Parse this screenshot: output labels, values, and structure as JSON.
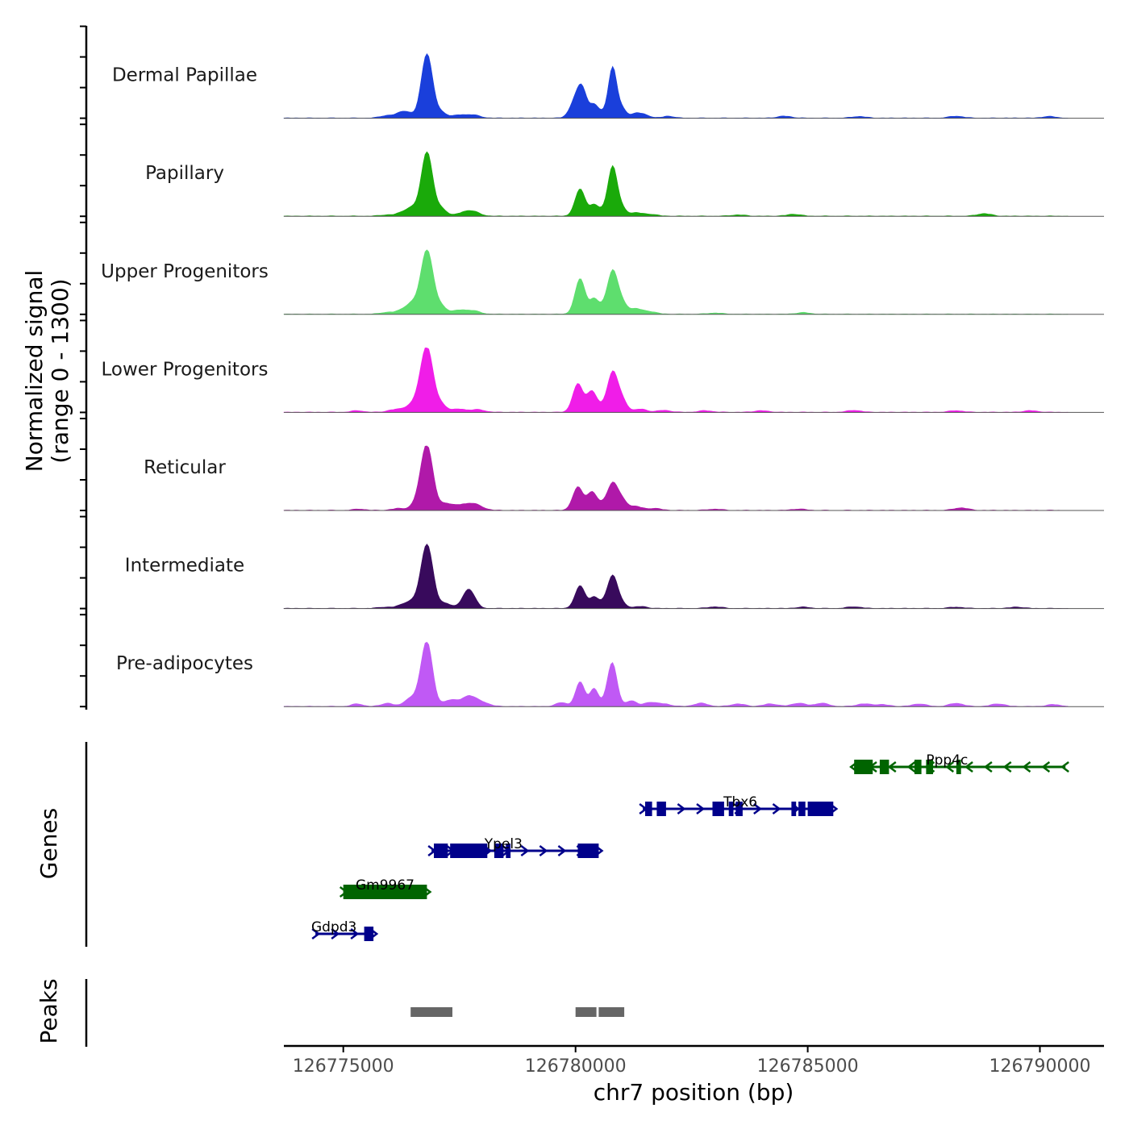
{
  "chart_data": {
    "type": "area",
    "title": "",
    "ylabel_line1": "Normalized signal",
    "ylabel_line2": "(range 0 - 1300)",
    "y_range": [
      0,
      1300
    ],
    "xlabel": "chr7 position (bp)",
    "xlim": [
      126773720,
      126791380
    ],
    "xticks": [
      "126775000",
      "126780000",
      "126785000",
      "126790000"
    ],
    "xtick_values": [
      126775000,
      126780000,
      126785000,
      126790000
    ],
    "tracks": [
      {
        "name": "Dermal Papillae",
        "color": "#1a3fdb",
        "peaks": [
          [
            126775950,
            40,
            150
          ],
          [
            126776250,
            70,
            120
          ],
          [
            126776400,
            60,
            120
          ],
          [
            126776800,
            1000,
            120
          ],
          [
            126777100,
            90,
            120
          ],
          [
            126777500,
            45,
            150
          ],
          [
            126777800,
            45,
            150
          ],
          [
            126780000,
            270,
            120
          ],
          [
            126780150,
            380,
            100
          ],
          [
            126780400,
            200,
            90
          ],
          [
            126780600,
            70,
            100
          ],
          [
            126780800,
            780,
            90
          ],
          [
            126781000,
            140,
            90
          ],
          [
            126781300,
            70,
            120
          ],
          [
            126781500,
            40,
            120
          ],
          [
            126782000,
            30,
            120
          ],
          [
            126784500,
            30,
            150
          ],
          [
            126786100,
            25,
            150
          ],
          [
            126788200,
            30,
            150
          ],
          [
            126790200,
            25,
            150
          ]
        ]
      },
      {
        "name": "Papillary",
        "color": "#1aaa0a",
        "peaks": [
          [
            126775950,
            20,
            150
          ],
          [
            126776300,
            60,
            130
          ],
          [
            126776500,
            110,
            120
          ],
          [
            126776800,
            1000,
            120
          ],
          [
            126777100,
            120,
            120
          ],
          [
            126777600,
            50,
            150
          ],
          [
            126777800,
            60,
            150
          ],
          [
            126780100,
            420,
            110
          ],
          [
            126780400,
            170,
            90
          ],
          [
            126780600,
            70,
            100
          ],
          [
            126780800,
            760,
            100
          ],
          [
            126781000,
            110,
            100
          ],
          [
            126781300,
            50,
            120
          ],
          [
            126781600,
            30,
            150
          ],
          [
            126783500,
            20,
            150
          ],
          [
            126784700,
            30,
            150
          ],
          [
            126788800,
            40,
            150
          ]
        ]
      },
      {
        "name": "Upper Progenitors",
        "color": "#5ede6e",
        "peaks": [
          [
            126775950,
            30,
            150
          ],
          [
            126776300,
            70,
            130
          ],
          [
            126776500,
            140,
            120
          ],
          [
            126776800,
            1000,
            130
          ],
          [
            126777100,
            120,
            120
          ],
          [
            126777500,
            60,
            150
          ],
          [
            126777800,
            50,
            150
          ],
          [
            126780100,
            550,
            110
          ],
          [
            126780400,
            230,
            90
          ],
          [
            126780600,
            90,
            100
          ],
          [
            126780800,
            650,
            110
          ],
          [
            126781000,
            160,
            110
          ],
          [
            126781300,
            80,
            130
          ],
          [
            126781600,
            40,
            150
          ],
          [
            126783000,
            20,
            150
          ],
          [
            126784900,
            25,
            150
          ]
        ]
      },
      {
        "name": "Lower Progenitors",
        "color": "#f01de8",
        "peaks": [
          [
            126775300,
            25,
            130
          ],
          [
            126776100,
            40,
            150
          ],
          [
            126776400,
            70,
            130
          ],
          [
            126776600,
            120,
            120
          ],
          [
            126776800,
            1000,
            130
          ],
          [
            126777100,
            120,
            120
          ],
          [
            126777500,
            50,
            150
          ],
          [
            126777900,
            40,
            150
          ],
          [
            126780050,
            440,
            110
          ],
          [
            126780300,
            180,
            90
          ],
          [
            126780400,
            200,
            90
          ],
          [
            126780600,
            70,
            100
          ],
          [
            126780800,
            600,
            110
          ],
          [
            126781000,
            180,
            110
          ],
          [
            126781400,
            50,
            130
          ],
          [
            126781900,
            30,
            150
          ],
          [
            126782800,
            25,
            150
          ],
          [
            126784000,
            25,
            150
          ],
          [
            126786000,
            30,
            150
          ],
          [
            126788200,
            25,
            150
          ],
          [
            126789800,
            25,
            150
          ]
        ]
      },
      {
        "name": "Reticular",
        "color": "#b019a9",
        "peaks": [
          [
            126775350,
            20,
            130
          ],
          [
            126776200,
            30,
            150
          ],
          [
            126776600,
            90,
            130
          ],
          [
            126776800,
            1000,
            130
          ],
          [
            126777200,
            100,
            130
          ],
          [
            126777500,
            60,
            150
          ],
          [
            126777800,
            100,
            180
          ],
          [
            126780050,
            360,
            110
          ],
          [
            126780300,
            150,
            90
          ],
          [
            126780400,
            180,
            90
          ],
          [
            126780600,
            80,
            100
          ],
          [
            126780800,
            400,
            110
          ],
          [
            126781000,
            150,
            110
          ],
          [
            126781300,
            60,
            130
          ],
          [
            126781700,
            30,
            150
          ],
          [
            126783000,
            20,
            150
          ],
          [
            126784800,
            20,
            150
          ],
          [
            126788300,
            40,
            150
          ]
        ]
      },
      {
        "name": "Intermediate",
        "color": "#380a5c",
        "peaks": [
          [
            126775900,
            20,
            150
          ],
          [
            126776300,
            60,
            130
          ],
          [
            126776500,
            80,
            120
          ],
          [
            126776800,
            1000,
            130
          ],
          [
            126777200,
            80,
            120
          ],
          [
            126777700,
            300,
            130
          ],
          [
            126780100,
            350,
            110
          ],
          [
            126780400,
            170,
            90
          ],
          [
            126780600,
            60,
            100
          ],
          [
            126780800,
            500,
            110
          ],
          [
            126781000,
            60,
            110
          ],
          [
            126781400,
            30,
            130
          ],
          [
            126783000,
            25,
            150
          ],
          [
            126784900,
            20,
            150
          ],
          [
            126786000,
            25,
            150
          ],
          [
            126788200,
            20,
            150
          ],
          [
            126789500,
            20,
            150
          ]
        ]
      },
      {
        "name": "Pre-adipocytes",
        "color": "#c059f5",
        "peaks": [
          [
            126775300,
            40,
            120
          ],
          [
            126775950,
            50,
            130
          ],
          [
            126776400,
            100,
            110
          ],
          [
            126776600,
            110,
            110
          ],
          [
            126776800,
            1000,
            120
          ],
          [
            126777300,
            100,
            150
          ],
          [
            126777700,
            160,
            150
          ],
          [
            126778000,
            60,
            150
          ],
          [
            126779700,
            60,
            120
          ],
          [
            126780100,
            380,
            100
          ],
          [
            126780400,
            280,
            90
          ],
          [
            126780700,
            100,
            100
          ],
          [
            126780800,
            620,
            100
          ],
          [
            126781200,
            90,
            110
          ],
          [
            126781600,
            60,
            130
          ],
          [
            126781900,
            40,
            150
          ],
          [
            126782700,
            50,
            150
          ],
          [
            126783500,
            40,
            150
          ],
          [
            126784200,
            40,
            150
          ],
          [
            126784800,
            50,
            150
          ],
          [
            126785300,
            50,
            150
          ],
          [
            126786200,
            40,
            150
          ],
          [
            126786600,
            30,
            150
          ],
          [
            126787400,
            40,
            150
          ],
          [
            126788200,
            50,
            150
          ],
          [
            126789100,
            40,
            150
          ],
          [
            126790300,
            30,
            150
          ]
        ]
      }
    ],
    "genes": [
      {
        "name": "Ppp4c",
        "color": "#006400",
        "strand": "-",
        "row": 0,
        "start": 126786000,
        "end": 126790550,
        "exons": [
          [
            126786000,
            126786400
          ],
          [
            126786550,
            126786750
          ],
          [
            126787300,
            126787450
          ],
          [
            126787550,
            126787700
          ],
          [
            126788200,
            126788300
          ]
        ]
      },
      {
        "name": "Tbx6",
        "color": "#00008b",
        "strand": "+",
        "row": 1,
        "start": 126781450,
        "end": 126785550,
        "exons": [
          [
            126781500,
            126781650
          ],
          [
            126781750,
            126781950
          ],
          [
            126782950,
            126783200
          ],
          [
            126783300,
            126783400
          ],
          [
            126783450,
            126783600
          ],
          [
            126784650,
            126784750
          ],
          [
            126784800,
            126784950
          ],
          [
            126785000,
            126785550
          ]
        ]
      },
      {
        "name": "Ypel3",
        "color": "#00008b",
        "strand": "+",
        "row": 2,
        "start": 126776900,
        "end": 126780500,
        "exons": [
          [
            126776950,
            126777250
          ],
          [
            126777300,
            126777800
          ],
          [
            126777800,
            126778100
          ],
          [
            126778250,
            126778450
          ],
          [
            126778500,
            126778600
          ],
          [
            126780050,
            126780500
          ]
        ]
      },
      {
        "name": "Gm9967",
        "color": "#006400",
        "strand": "+",
        "row": 3,
        "start": 126775000,
        "end": 126776800,
        "exons": [
          [
            126775000,
            126776800
          ]
        ]
      },
      {
        "name": "Gdpd3",
        "color": "#00008b",
        "strand": "+",
        "row": 4,
        "start": 126774400,
        "end": 126775650,
        "exons": [
          [
            126775450,
            126775650
          ]
        ]
      }
    ],
    "gene_track_label": "Genes",
    "peaks": [
      {
        "start": 126776450,
        "end": 126777350
      },
      {
        "start": 126780000,
        "end": 126780450
      },
      {
        "start": 126780500,
        "end": 126781050
      }
    ],
    "peak_track_label": "Peaks"
  }
}
